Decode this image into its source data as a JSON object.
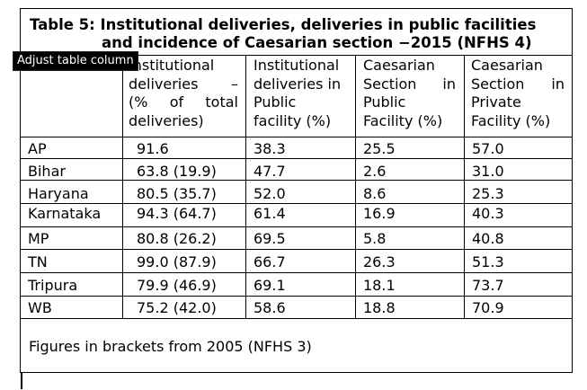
{
  "title": {
    "line1": "Table 5: Institutional deliveries, deliveries in public facilities",
    "line2": "and incidence of Caesarian section −2015 (NFHS 4)"
  },
  "tooltip": "Adjust table column",
  "columns": [
    {
      "lines": [
        "Institutional",
        "deliveries –",
        "(% of total",
        "deliveries)"
      ]
    },
    {
      "lines": [
        "Institutional",
        "deliveries in",
        "Public",
        "facility (%)"
      ]
    },
    {
      "lines": [
        "Caesarian",
        "Section in",
        "Public",
        "Facility (%)"
      ]
    },
    {
      "lines": [
        "Caesarian",
        "Section in",
        "Private",
        "Facility (%)"
      ]
    }
  ],
  "rows": [
    {
      "state": "AP",
      "inst": "91.6",
      "pub": "38.3",
      "cs_pub": "25.5",
      "cs_priv": "57.0"
    },
    {
      "state": "Bihar",
      "inst": "63.8 (19.9)",
      "pub": "47.7",
      "cs_pub": "2.6",
      "cs_priv": "31.0"
    },
    {
      "state": "Haryana",
      "inst": "80.5 (35.7)",
      "pub": "52.0",
      "cs_pub": "8.6",
      "cs_priv": "25.3"
    },
    {
      "state": "Karnataka",
      "inst": "94.3 (64.7)",
      "pub": "61.4",
      "cs_pub": "16.9",
      "cs_priv": "40.3"
    },
    {
      "state": "MP",
      "inst": "80.8 (26.2)",
      "pub": "69.5",
      "cs_pub": "5.8",
      "cs_priv": "40.8"
    },
    {
      "state": "TN",
      "inst": "99.0 (87.9)",
      "pub": "66.7",
      "cs_pub": "26.3",
      "cs_priv": "51.3"
    },
    {
      "state": "Tripura",
      "inst": "79.9 (46.9)",
      "pub": "69.1",
      "cs_pub": "18.1",
      "cs_priv": "73.7"
    },
    {
      "state": "WB",
      "inst": "75.2 (42.0)",
      "pub": "58.6",
      "cs_pub": "18.8",
      "cs_priv": "70.9"
    }
  ],
  "footnote": "Figures in brackets from 2005 (NFHS 3)"
}
